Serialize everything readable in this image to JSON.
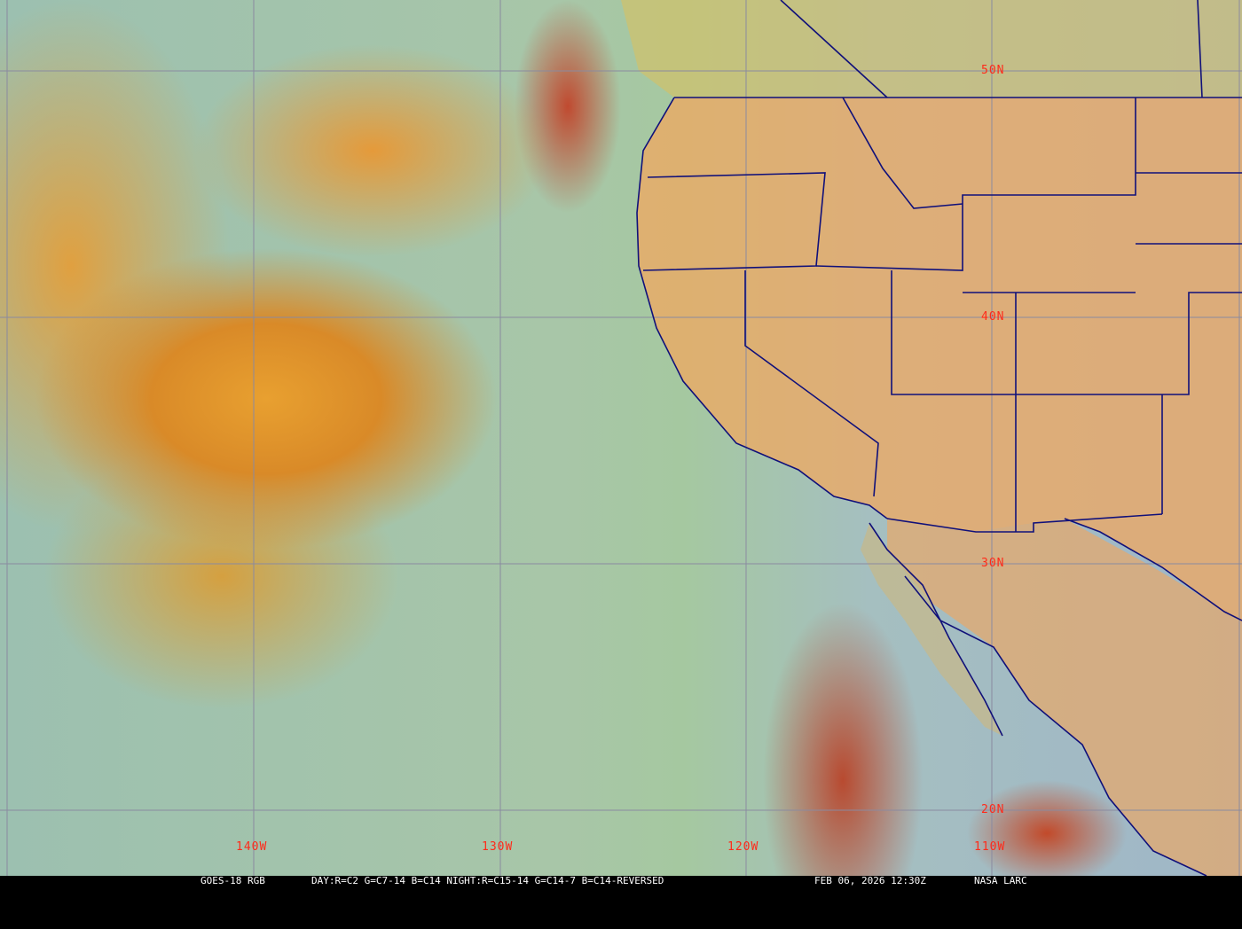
{
  "map": {
    "product": "GOES-18 RGB",
    "recipe": "DAY:R=C2 G=C7-14 B=C14 NIGHT:R=C15-14 G=C14-7 B=C14-REVERSED",
    "datetime": "FEB 06, 2026 12:30Z",
    "credit": "NASA LARC",
    "lat_labels": [
      "50N",
      "40N",
      "30N",
      "20N"
    ],
    "lon_labels": [
      "140W",
      "130W",
      "120W",
      "110W"
    ],
    "colors": {
      "grid": "#8a8aa0",
      "borders": "#10107a",
      "labels": "#ff2a1a",
      "land": "#f0a860"
    }
  }
}
